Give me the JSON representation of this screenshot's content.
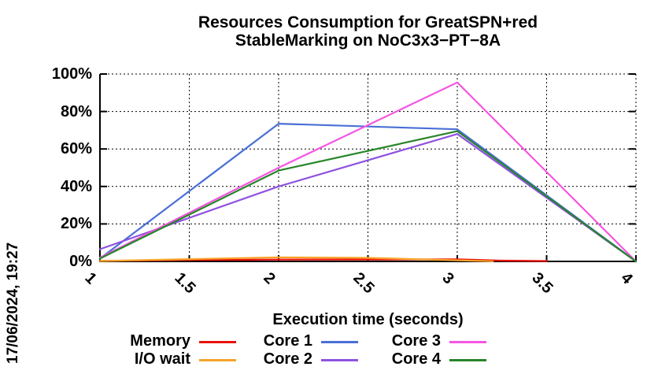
{
  "header": {
    "title_line1": "Resources Consumption for GreatSPN+red",
    "title_line2": "StableMarking on NoC3x3−PT−8A"
  },
  "timestamp": "17/06/2024, 19:27",
  "chart_data": {
    "type": "line",
    "title": "Resources Consumption for GreatSPN+red StableMarking on NoC3x3−PT−8A",
    "xlabel": "Execution time (seconds)",
    "ylabel": "",
    "xlim": [
      1,
      4
    ],
    "ylim": [
      0,
      100
    ],
    "x_ticks": [
      1,
      1.5,
      2,
      2.5,
      3,
      3.5,
      4
    ],
    "x_tick_labels": [
      "1",
      "1.5",
      "2",
      "2.5",
      "3",
      "3.5",
      "4"
    ],
    "y_ticks": [
      0,
      20,
      40,
      60,
      80,
      100
    ],
    "y_tick_labels": [
      "0%",
      "20%",
      "40%",
      "60%",
      "80%",
      "100%"
    ],
    "grid": true,
    "grid_style": "dotted-black",
    "legend_position": "bottom",
    "axis_color": "#000000",
    "background_color": "#ffffff",
    "series": [
      {
        "name": "Memory",
        "color": "#e8130c",
        "x": [
          1,
          1.5,
          2,
          2.5,
          3,
          3.25,
          3.5
        ],
        "y": [
          0.3,
          0.7,
          1.0,
          1.0,
          1.1,
          0.4,
          0.2
        ]
      },
      {
        "name": "I/O wait",
        "color": "#f7a42a",
        "x": [
          1,
          1.5,
          2,
          2.5,
          3,
          3.2
        ],
        "y": [
          0.2,
          1.2,
          2.2,
          1.9,
          0.6,
          0.1
        ]
      },
      {
        "name": "Core 1",
        "color": "#4a6fd6",
        "x": [
          1,
          2,
          3,
          4
        ],
        "y": [
          1.5,
          73.5,
          70.5,
          0
        ]
      },
      {
        "name": "Core 2",
        "color": "#8f52e0",
        "x": [
          1,
          2,
          3,
          4
        ],
        "y": [
          6.5,
          40.0,
          68.0,
          0
        ]
      },
      {
        "name": "Core 3",
        "color": "#f556e2",
        "x": [
          1,
          2,
          3,
          4
        ],
        "y": [
          2.0,
          50.0,
          95.5,
          0
        ]
      },
      {
        "name": "Core 4",
        "color": "#28852a",
        "x": [
          1,
          2,
          3,
          4
        ],
        "y": [
          1.5,
          48.5,
          69.5,
          0
        ]
      }
    ],
    "legend_order": [
      [
        "Memory",
        "Core 1",
        "Core 3"
      ],
      [
        "I/O wait",
        "Core 2",
        "Core 4"
      ]
    ]
  }
}
